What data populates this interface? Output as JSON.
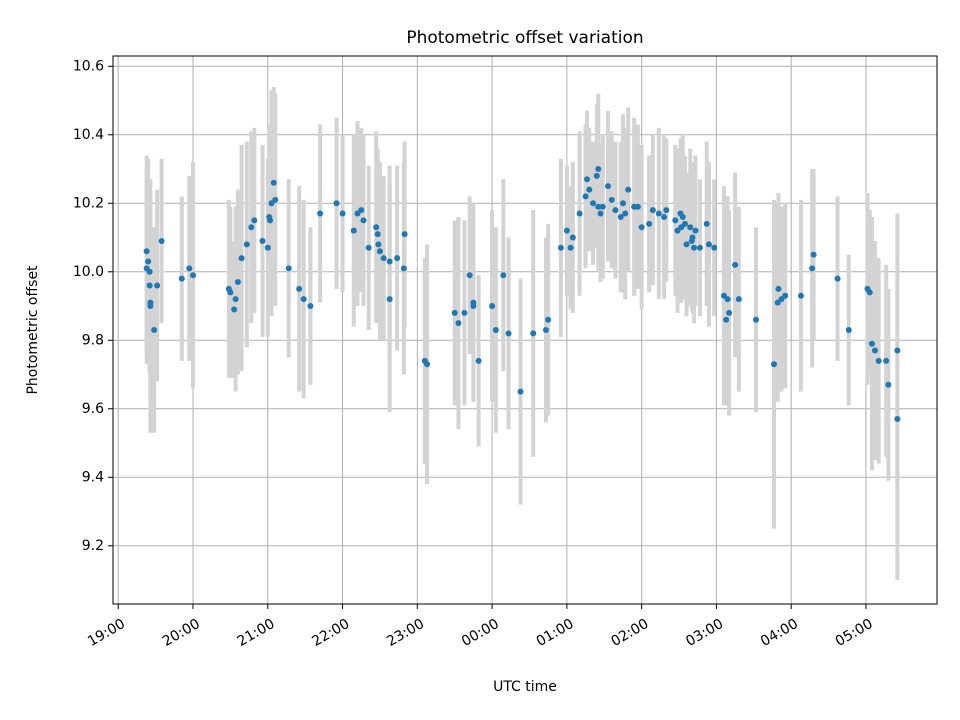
{
  "chart_data": {
    "type": "scatter",
    "title": "Photometric offset variation",
    "xlabel": "UTC time",
    "ylabel": "Photometric offset",
    "grid": true,
    "x_units": "hours after 19:00 UTC",
    "xlim": [
      -0.07,
      10.95
    ],
    "ylim": [
      9.03,
      10.63
    ],
    "x_ticks": [
      0,
      1,
      2,
      3,
      4,
      5,
      6,
      7,
      8,
      9,
      10
    ],
    "x_tick_labels": [
      "19:00",
      "20:00",
      "21:00",
      "22:00",
      "23:00",
      "00:00",
      "01:00",
      "02:00",
      "03:00",
      "04:00",
      "05:00"
    ],
    "y_ticks": [
      9.2,
      9.4,
      9.6,
      9.8,
      10.0,
      10.2,
      10.4,
      10.6
    ],
    "y_tick_labels": [
      "9.2",
      "9.4",
      "9.6",
      "9.8",
      "10.0",
      "10.2",
      "10.4",
      "10.6"
    ],
    "marker_color": "#1f77b4",
    "errorbar_color": "#d3d3d3",
    "series": [
      {
        "name": "offset",
        "points": [
          [
            0.38,
            10.06,
            0.28
          ],
          [
            0.38,
            10.01,
            0.28
          ],
          [
            0.4,
            10.03,
            0.3
          ],
          [
            0.42,
            10.0,
            0.25
          ],
          [
            0.42,
            9.96,
            0.26
          ],
          [
            0.43,
            9.91,
            0.3
          ],
          [
            0.43,
            9.9,
            0.37
          ],
          [
            0.48,
            9.83,
            0.3
          ],
          [
            0.52,
            9.96,
            0.28
          ],
          [
            0.58,
            10.09,
            0.24
          ],
          [
            0.85,
            9.98,
            0.24
          ],
          [
            0.95,
            10.01,
            0.27
          ],
          [
            1.0,
            9.99,
            0.33
          ],
          [
            1.48,
            9.95,
            0.26
          ],
          [
            1.5,
            9.94,
            0.25
          ],
          [
            1.55,
            9.89,
            0.2
          ],
          [
            1.57,
            9.92,
            0.27
          ],
          [
            1.6,
            9.97,
            0.27
          ],
          [
            1.65,
            10.04,
            0.33
          ],
          [
            1.72,
            10.08,
            0.3
          ],
          [
            1.78,
            10.13,
            0.28
          ],
          [
            1.82,
            10.15,
            0.27
          ],
          [
            1.93,
            10.09,
            0.28
          ],
          [
            2.0,
            10.07,
            0.26
          ],
          [
            2.02,
            10.16,
            0.27
          ],
          [
            2.03,
            10.15,
            0.26
          ],
          [
            2.05,
            10.2,
            0.33
          ],
          [
            2.08,
            10.26,
            0.28
          ],
          [
            2.1,
            10.21,
            0.31
          ],
          [
            2.28,
            10.01,
            0.26
          ],
          [
            2.42,
            9.95,
            0.3
          ],
          [
            2.48,
            9.92,
            0.29
          ],
          [
            2.57,
            9.9,
            0.23
          ],
          [
            2.7,
            10.17,
            0.26
          ],
          [
            2.92,
            10.2,
            0.25
          ],
          [
            3.0,
            10.17,
            0.23
          ],
          [
            3.15,
            10.12,
            0.28
          ],
          [
            3.2,
            10.17,
            0.27
          ],
          [
            3.25,
            10.18,
            0.24
          ],
          [
            3.28,
            10.15,
            0.25
          ],
          [
            3.35,
            10.07,
            0.24
          ],
          [
            3.45,
            10.13,
            0.28
          ],
          [
            3.47,
            10.11,
            0.25
          ],
          [
            3.48,
            10.08,
            0.23
          ],
          [
            3.5,
            10.06,
            0.26
          ],
          [
            3.55,
            10.04,
            0.24
          ],
          [
            3.63,
            9.92,
            0.33
          ],
          [
            3.63,
            10.03,
            0.28
          ],
          [
            3.73,
            10.04,
            0.27
          ],
          [
            3.82,
            10.01,
            0.31
          ],
          [
            3.83,
            10.11,
            0.27
          ],
          [
            4.1,
            9.74,
            0.3
          ],
          [
            4.13,
            9.73,
            0.35
          ],
          [
            4.5,
            9.88,
            0.27
          ],
          [
            4.55,
            9.85,
            0.31
          ],
          [
            4.63,
            9.88,
            0.27
          ],
          [
            4.7,
            9.99,
            0.23
          ],
          [
            4.75,
            9.9,
            0.27
          ],
          [
            4.75,
            9.91,
            0.29
          ],
          [
            4.82,
            9.74,
            0.25
          ],
          [
            5.0,
            9.9,
            0.28
          ],
          [
            5.05,
            9.83,
            0.3
          ],
          [
            5.15,
            9.99,
            0.28
          ],
          [
            5.22,
            9.82,
            0.28
          ],
          [
            5.38,
            9.65,
            0.33
          ],
          [
            5.55,
            9.82,
            0.36
          ],
          [
            5.72,
            9.83,
            0.27
          ],
          [
            5.75,
            9.86,
            0.28
          ],
          [
            5.92,
            10.07,
            0.26
          ],
          [
            6.0,
            10.12,
            0.19
          ],
          [
            6.05,
            10.07,
            0.18
          ],
          [
            6.08,
            10.1,
            0.22
          ],
          [
            6.17,
            10.17,
            0.24
          ],
          [
            6.25,
            10.22,
            0.21
          ],
          [
            6.27,
            10.27,
            0.2
          ],
          [
            6.3,
            10.24,
            0.18
          ],
          [
            6.35,
            10.2,
            0.18
          ],
          [
            6.4,
            10.28,
            0.21
          ],
          [
            6.42,
            10.3,
            0.22
          ],
          [
            6.42,
            10.19,
            0.19
          ],
          [
            6.45,
            10.17,
            0.2
          ],
          [
            6.48,
            10.19,
            0.21
          ],
          [
            6.55,
            10.25,
            0.22
          ],
          [
            6.6,
            10.21,
            0.2
          ],
          [
            6.65,
            10.18,
            0.2
          ],
          [
            6.72,
            10.16,
            0.22
          ],
          [
            6.75,
            10.2,
            0.26
          ],
          [
            6.78,
            10.17,
            0.25
          ],
          [
            6.82,
            10.24,
            0.24
          ],
          [
            6.9,
            10.19,
            0.26
          ],
          [
            6.95,
            10.19,
            0.24
          ],
          [
            7.0,
            10.13,
            0.24
          ],
          [
            7.1,
            10.14,
            0.2
          ],
          [
            7.15,
            10.18,
            0.22
          ],
          [
            7.23,
            10.17,
            0.25
          ],
          [
            7.3,
            10.16,
            0.24
          ],
          [
            7.33,
            10.18,
            0.21
          ],
          [
            7.45,
            10.15,
            0.22
          ],
          [
            7.48,
            10.12,
            0.24
          ],
          [
            7.52,
            10.17,
            0.22
          ],
          [
            7.53,
            10.13,
            0.22
          ],
          [
            7.55,
            10.16,
            0.24
          ],
          [
            7.58,
            10.14,
            0.2
          ],
          [
            7.6,
            10.08,
            0.21
          ],
          [
            7.65,
            10.13,
            0.23
          ],
          [
            7.67,
            10.09,
            0.2
          ],
          [
            7.68,
            10.1,
            0.22
          ],
          [
            7.7,
            10.07,
            0.22
          ],
          [
            7.72,
            10.12,
            0.22
          ],
          [
            7.78,
            10.07,
            0.2
          ],
          [
            7.87,
            10.14,
            0.24
          ],
          [
            7.9,
            10.08,
            0.24
          ],
          [
            7.97,
            10.07,
            0.2
          ],
          [
            8.1,
            9.93,
            0.32
          ],
          [
            8.13,
            9.86,
            0.25
          ],
          [
            8.15,
            9.92,
            0.3
          ],
          [
            8.17,
            9.88,
            0.3
          ],
          [
            8.25,
            10.02,
            0.27
          ],
          [
            8.3,
            9.92,
            0.27
          ],
          [
            8.53,
            9.86,
            0.27
          ],
          [
            8.77,
            9.73,
            0.48
          ],
          [
            8.82,
            9.91,
            0.29
          ],
          [
            8.83,
            9.95,
            0.28
          ],
          [
            8.87,
            9.92,
            0.27
          ],
          [
            8.92,
            9.93,
            0.27
          ],
          [
            9.13,
            9.93,
            0.28
          ],
          [
            9.28,
            10.01,
            0.29
          ],
          [
            9.3,
            10.05,
            0.25
          ],
          [
            9.62,
            9.98,
            0.24
          ],
          [
            9.77,
            9.83,
            0.22
          ],
          [
            10.02,
            9.95,
            0.28
          ],
          [
            10.05,
            9.94,
            0.24
          ],
          [
            10.08,
            9.79,
            0.37
          ],
          [
            10.12,
            9.77,
            0.32
          ],
          [
            10.17,
            9.74,
            0.3
          ],
          [
            10.27,
            9.74,
            0.28
          ],
          [
            10.3,
            9.67,
            0.28
          ],
          [
            10.42,
            9.77,
            0.4
          ],
          [
            10.42,
            9.57,
            0.47
          ]
        ]
      }
    ]
  }
}
